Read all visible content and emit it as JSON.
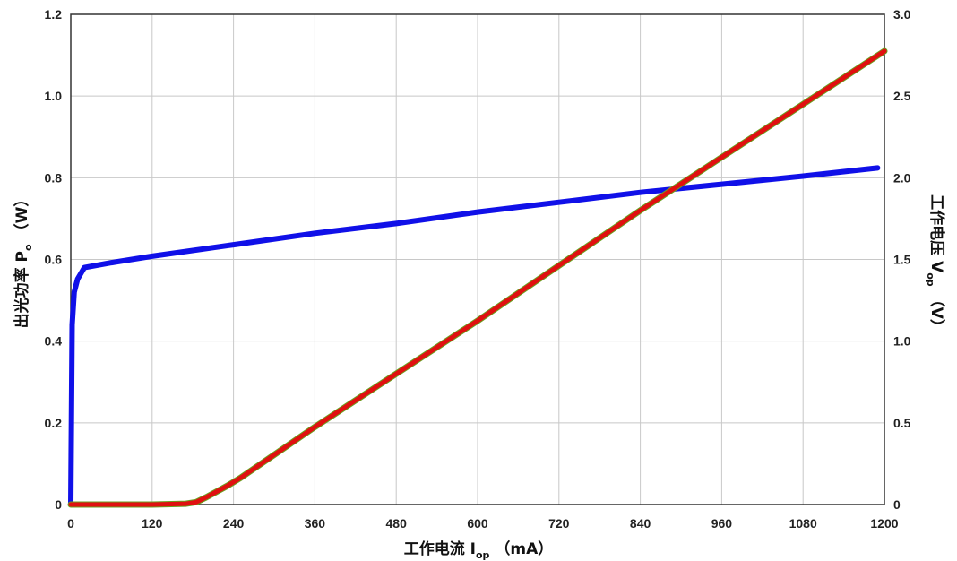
{
  "chart_data": {
    "type": "line",
    "xlabel": {
      "main": "工作电流 I",
      "sub": "op",
      "unit": "（mA）"
    },
    "ylabel_left": {
      "main": "出光功率 P",
      "sub": "o",
      "unit": "（W）"
    },
    "ylabel_right": {
      "main": "工作电压 V",
      "sub": "op",
      "unit": "（V）"
    },
    "xlim": [
      0,
      1200
    ],
    "ylim_left": [
      0,
      1.2
    ],
    "ylim_right": [
      0,
      3.0
    ],
    "grid": true,
    "x_ticks": [
      "0",
      "120",
      "240",
      "360",
      "480",
      "600",
      "720",
      "840",
      "960",
      "1080",
      "1200"
    ],
    "y_left_ticks": [
      "0",
      "0.2",
      "0.4",
      "0.6",
      "0.8",
      "1.0",
      "1.2"
    ],
    "y_right_ticks": [
      "0",
      "0.5",
      "1.0",
      "1.5",
      "2.0",
      "2.5",
      "3.0"
    ],
    "series": [
      {
        "axis": "right",
        "color": "#1010e8",
        "x": [
          0,
          2,
          5,
          10,
          20,
          60,
          120,
          240,
          360,
          480,
          600,
          720,
          840,
          960,
          1080,
          1190
        ],
        "y": [
          0,
          1.1,
          1.3,
          1.38,
          1.45,
          1.48,
          1.52,
          1.59,
          1.66,
          1.72,
          1.79,
          1.85,
          1.91,
          1.96,
          2.01,
          2.06
        ]
      },
      {
        "axis": "left",
        "color": "#e01010",
        "x": [
          0,
          120,
          170,
          185,
          200,
          230,
          250,
          360,
          480,
          600,
          720,
          840,
          900,
          960,
          1080,
          1200
        ],
        "y": [
          0,
          0,
          0.002,
          0.006,
          0.018,
          0.045,
          0.065,
          0.19,
          0.32,
          0.45,
          0.585,
          0.72,
          0.785,
          0.85,
          0.98,
          1.11
        ]
      }
    ]
  }
}
